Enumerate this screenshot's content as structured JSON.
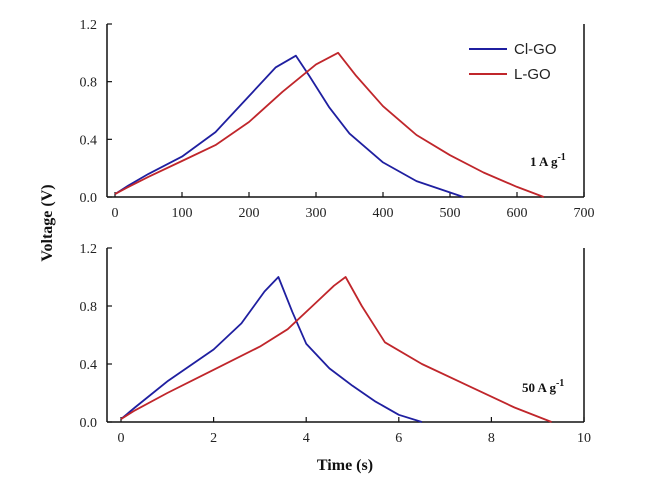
{
  "chart_data": {
    "type": "line",
    "ylabel": "Voltage (V)",
    "xlabel": "Time (s)",
    "legend": {
      "placement": "top-right",
      "entries": [
        {
          "name": "Cl-GO",
          "color": "#1f1fa0"
        },
        {
          "name": "L-GO",
          "color": "#c0262b"
        }
      ]
    },
    "panels": [
      {
        "annotation": {
          "text": "1 A g",
          "sup": "-1"
        },
        "xlim": [
          0,
          700
        ],
        "ylim": [
          0,
          1.2
        ],
        "xticks": [
          "0",
          "100",
          "200",
          "300",
          "400",
          "500",
          "600",
          "700"
        ],
        "yticks": [
          "0.0",
          "0.4",
          "0.8",
          "1.2"
        ],
        "series": [
          {
            "name": "Cl-GO",
            "color": "#1f1fa0",
            "x": [
              0,
              20,
              50,
              100,
              150,
              200,
              240,
              270,
              290,
              320,
              350,
              400,
              450,
              520
            ],
            "y": [
              0.02,
              0.08,
              0.16,
              0.28,
              0.45,
              0.7,
              0.9,
              0.98,
              0.84,
              0.62,
              0.44,
              0.24,
              0.11,
              0.0
            ]
          },
          {
            "name": "L-GO",
            "color": "#c0262b",
            "x": [
              0,
              20,
              50,
              100,
              150,
              200,
              250,
              300,
              333,
              360,
              400,
              450,
              500,
              550,
              600,
              640
            ],
            "y": [
              0.02,
              0.07,
              0.14,
              0.25,
              0.36,
              0.52,
              0.73,
              0.92,
              1.0,
              0.84,
              0.63,
              0.43,
              0.29,
              0.17,
              0.07,
              0.0
            ]
          }
        ]
      },
      {
        "annotation": {
          "text": "50 A g",
          "sup": "-1"
        },
        "xlim": [
          0,
          10
        ],
        "ylim": [
          0,
          1.2
        ],
        "xticks": [
          "0",
          "2",
          "4",
          "6",
          "8",
          "10"
        ],
        "yticks": [
          "0.0",
          "0.4",
          "0.8",
          "1.2"
        ],
        "series": [
          {
            "name": "Cl-GO",
            "color": "#1f1fa0",
            "x": [
              0,
              0.3,
              1,
              2,
              2.6,
              3.1,
              3.4,
              3.7,
              4,
              4.5,
              5,
              5.5,
              6,
              6.5
            ],
            "y": [
              0.02,
              0.1,
              0.28,
              0.5,
              0.68,
              0.9,
              1.0,
              0.76,
              0.54,
              0.37,
              0.25,
              0.14,
              0.05,
              0.0
            ]
          },
          {
            "name": "L-GO",
            "color": "#c0262b",
            "x": [
              0,
              0.3,
              1,
              2,
              3,
              3.6,
              4.2,
              4.6,
              4.85,
              5.2,
              5.7,
              6.5,
              7.5,
              8.5,
              9.3
            ],
            "y": [
              0.02,
              0.08,
              0.2,
              0.36,
              0.52,
              0.64,
              0.82,
              0.94,
              1.0,
              0.8,
              0.55,
              0.4,
              0.25,
              0.1,
              0.0
            ]
          }
        ]
      }
    ]
  }
}
